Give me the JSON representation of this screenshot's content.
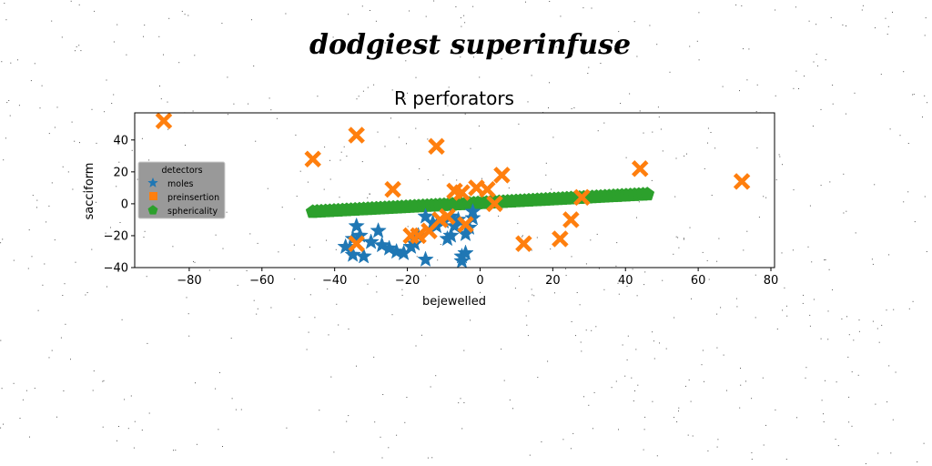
{
  "figure_title": "dodgiest superinfuse",
  "chart_data": {
    "type": "scatter",
    "title": "R perforators",
    "xlabel": "bejewelled",
    "ylabel": "sacciform",
    "xlim": [
      -95,
      81
    ],
    "ylim": [
      -40,
      57
    ],
    "xticks": [
      -80,
      -60,
      -40,
      -20,
      0,
      20,
      40,
      60,
      80
    ],
    "yticks": [
      -40,
      -20,
      0,
      20,
      40
    ],
    "xtick_labels": [
      "−80",
      "−60",
      "−40",
      "−20",
      "0",
      "20",
      "40",
      "60",
      "80"
    ],
    "ytick_labels": [
      "−40",
      "−20",
      "0",
      "20",
      "40"
    ],
    "grid": false,
    "legend": {
      "title": "detectors",
      "position": "center-left",
      "background": "#999999"
    },
    "series": [
      {
        "name": "moles",
        "marker": "star",
        "color": "#1f77b4",
        "x": [
          -37,
          -35,
          -34,
          -33,
          -32,
          -35,
          -30,
          -28,
          -27,
          -25,
          -23,
          -21,
          -19,
          -17,
          -15,
          -13,
          -12,
          -10,
          -9,
          -8,
          -7,
          -6,
          -5,
          -5,
          -4,
          -4,
          -3,
          -2,
          -2,
          -8,
          -15,
          -18
        ],
        "y": [
          -27,
          -32,
          -14,
          -20,
          -33,
          -22,
          -24,
          -17,
          -26,
          -28,
          -30,
          -31,
          -27,
          -20,
          -35,
          -12,
          -14,
          -11,
          -22,
          -20,
          -14,
          -10,
          -33,
          -36,
          -19,
          -31,
          -15,
          -5,
          -9,
          -8,
          -8,
          -25
        ]
      },
      {
        "name": "preinsertion",
        "marker": "x",
        "color": "#ff7f0e",
        "x": [
          -87,
          -46,
          -34,
          -34,
          -24,
          -19,
          -17,
          -14,
          -12,
          -11,
          -9,
          -7,
          -5,
          -4,
          -1,
          2,
          4,
          6,
          12,
          22,
          25,
          28,
          44,
          72
        ],
        "y": [
          52,
          28,
          43,
          -25,
          9,
          -20,
          -20,
          -17,
          36,
          -10,
          -8,
          8,
          7,
          -13,
          10,
          9,
          0,
          18,
          -25,
          -22,
          -10,
          4,
          22,
          14
        ]
      },
      {
        "name": "sphericality",
        "marker": "pentagon",
        "color": "#2ca02c",
        "x_range": [
          -46,
          46
        ],
        "y_range": [
          -5,
          6
        ],
        "count": 80
      }
    ]
  }
}
